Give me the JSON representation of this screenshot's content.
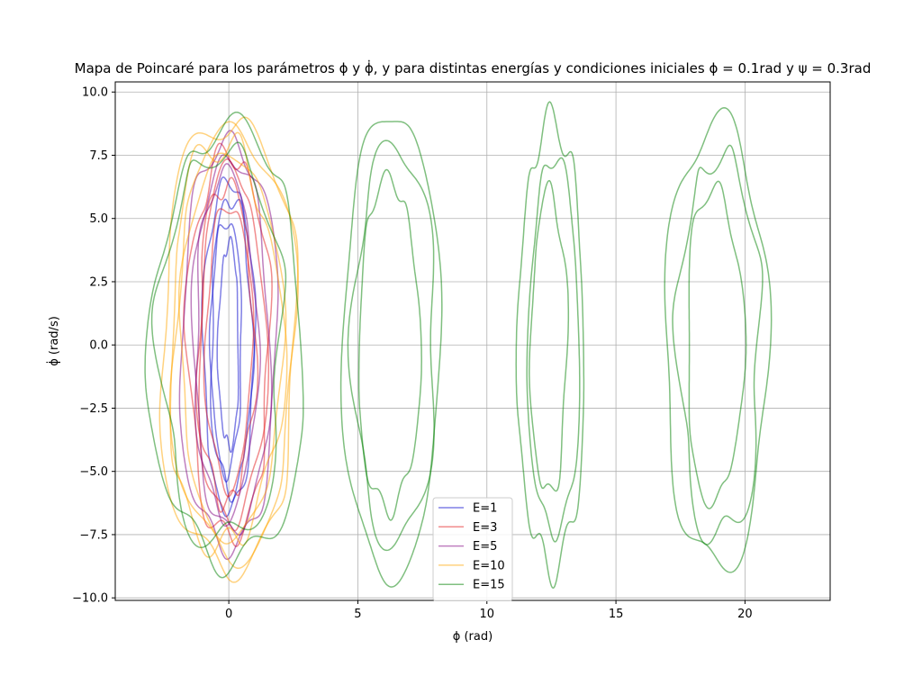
{
  "chart_data": {
    "type": "line",
    "title": "Mapa de Poincaré para los parámetros ϕ y ϕ̇, y para distintas energías y condiciones iniciales ϕ = 0.1rad y ψ = 0.3rad",
    "xlabel": "ϕ (rad)",
    "ylabel": "ϕ̇ (rad/s)",
    "xlim": [
      -4.4,
      23.3
    ],
    "ylim": [
      -10.1,
      10.4
    ],
    "xticks": [
      0,
      5,
      10,
      15,
      20
    ],
    "yticks": [
      -10.0,
      -7.5,
      -5.0,
      -2.5,
      0.0,
      2.5,
      5.0,
      7.5,
      10.0
    ],
    "xtick_labels": [
      "0",
      "5",
      "10",
      "15",
      "20"
    ],
    "ytick_labels": [
      "−10.0",
      "−7.5",
      "−5.0",
      "−2.5",
      "0.0",
      "2.5",
      "5.0",
      "7.5",
      "10.0"
    ],
    "grid": true,
    "legend_position": "lower-center",
    "series": [
      {
        "name": "E=1",
        "color": "#0000cc",
        "loops": [
          {
            "cx": 0.0,
            "ax": 1.0,
            "ay": 6.5
          },
          {
            "cx": 0.1,
            "ax": 0.8,
            "ay": 5.8
          },
          {
            "cx": -0.1,
            "ax": 0.6,
            "ay": 5.0
          },
          {
            "cx": 0.0,
            "ax": 0.4,
            "ay": 4.0
          }
        ]
      },
      {
        "name": "E=3",
        "color": "#e41a1c",
        "loops": [
          {
            "cx": 0.0,
            "ax": 1.6,
            "ay": 7.6
          },
          {
            "cx": 0.1,
            "ax": 1.3,
            "ay": 7.0
          },
          {
            "cx": -0.1,
            "ax": 1.1,
            "ay": 6.3
          },
          {
            "cx": 0.0,
            "ax": 0.9,
            "ay": 5.6
          }
        ]
      },
      {
        "name": "E=5",
        "color": "#800080",
        "loops": [
          {
            "cx": 0.0,
            "ax": 1.9,
            "ay": 8.0
          },
          {
            "cx": 0.1,
            "ax": 1.5,
            "ay": 7.4
          },
          {
            "cx": -0.1,
            "ax": 1.2,
            "ay": 6.8
          }
        ]
      },
      {
        "name": "E=10",
        "color": "#ffa500",
        "loops": [
          {
            "cx": 0.0,
            "ax": 2.7,
            "ay": 8.8
          },
          {
            "cx": 0.2,
            "ax": 2.4,
            "ay": 8.4
          },
          {
            "cx": -0.2,
            "ax": 2.2,
            "ay": 8.0
          },
          {
            "cx": 0.1,
            "ax": 2.0,
            "ay": 7.6
          }
        ]
      },
      {
        "name": "E=15",
        "color": "#008000",
        "loops": [
          {
            "cx": 0.0,
            "ax": 3.0,
            "ay": 8.6
          },
          {
            "cx": -0.3,
            "ax": 2.4,
            "ay": 7.8
          },
          {
            "cx": 6.3,
            "ax": 1.9,
            "ay": 9.2
          },
          {
            "cx": 6.4,
            "ax": 1.6,
            "ay": 7.9
          },
          {
            "cx": 6.2,
            "ax": 1.2,
            "ay": 6.5
          },
          {
            "cx": 12.5,
            "ax": 1.3,
            "ay": 8.8
          },
          {
            "cx": 12.6,
            "ax": 1.0,
            "ay": 7.4
          },
          {
            "cx": 12.4,
            "ax": 0.7,
            "ay": 6.0
          },
          {
            "cx": 18.9,
            "ax": 2.0,
            "ay": 8.8
          },
          {
            "cx": 19.0,
            "ax": 1.6,
            "ay": 7.6
          },
          {
            "cx": 18.8,
            "ax": 1.1,
            "ay": 6.2
          }
        ]
      }
    ]
  }
}
